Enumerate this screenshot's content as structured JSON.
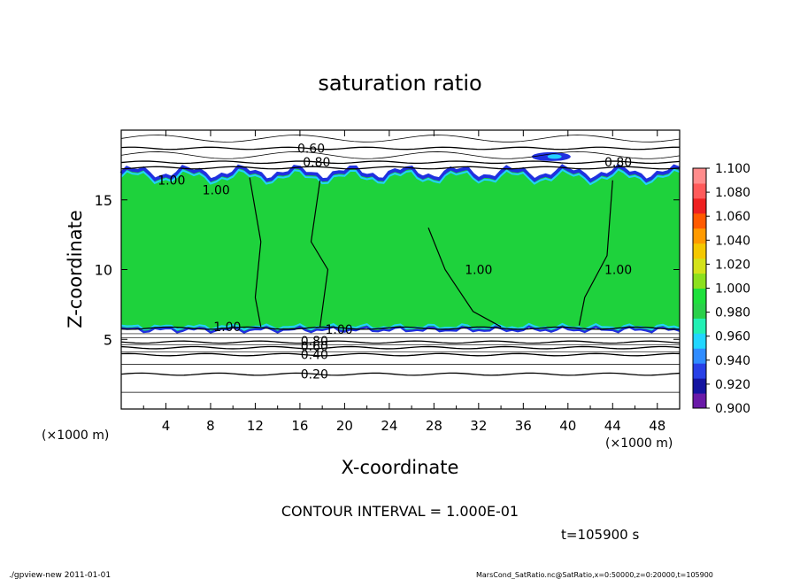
{
  "chart_data": {
    "type": "heatmap",
    "title": "saturation ratio",
    "xlabel": "X-coordinate",
    "ylabel": "Z-coordinate",
    "x_unit": "(×1000 m)",
    "x_unit_bottom": "(×1000 m)",
    "xlim": [
      0,
      50
    ],
    "ylim": [
      0,
      20
    ],
    "x_ticks": [
      "4",
      "8",
      "12",
      "16",
      "20",
      "24",
      "28",
      "32",
      "36",
      "40",
      "44",
      "48"
    ],
    "y_ticks": [
      "5",
      "10",
      "15"
    ],
    "colorbar": {
      "colors": [
        "#6a1aa8",
        "#1414a0",
        "#2840e6",
        "#2f8cff",
        "#22d6ff",
        "#22f0b4",
        "#2ad04a",
        "#1ee03c",
        "#8ce01e",
        "#d4e21a",
        "#f4c800",
        "#ff9a00",
        "#ff5a00",
        "#ee2020",
        "#ff5a5a",
        "#ff8c8c"
      ],
      "labels": [
        "0.900",
        "0.920",
        "0.940",
        "0.960",
        "0.980",
        "1.000",
        "1.020",
        "1.040",
        "1.060",
        "1.080",
        "1.100"
      ]
    },
    "contours": [
      {
        "label": "0.20",
        "z": 2.5
      },
      {
        "label": "0.40",
        "z": 3.9
      },
      {
        "label": "0.60",
        "z": 4.4
      },
      {
        "label": "0.80",
        "z": 4.8
      },
      {
        "label": "1.00",
        "z": 5.8
      },
      {
        "label": "1.00",
        "z": 17.3
      },
      {
        "label": "0.80",
        "z": 17.7
      },
      {
        "label": "0.60",
        "z": 18.7
      }
    ],
    "contour_labels": [
      {
        "text": "0.60",
        "x": 17.0,
        "z": 18.7
      },
      {
        "text": "0.80",
        "x": 17.5,
        "z": 17.7
      },
      {
        "text": "0.80",
        "x": 44.5,
        "z": 17.7
      },
      {
        "text": "1.00",
        "x": 4.5,
        "z": 16.4
      },
      {
        "text": "1.00",
        "x": 8.5,
        "z": 15.7
      },
      {
        "text": "1.00",
        "x": 32.0,
        "z": 10.0
      },
      {
        "text": "1.00",
        "x": 44.5,
        "z": 10.0
      },
      {
        "text": "1.00",
        "x": 9.5,
        "z": 5.9
      },
      {
        "text": "1.00",
        "x": 19.5,
        "z": 5.7
      },
      {
        "text": "0.80",
        "x": 17.3,
        "z": 4.9
      },
      {
        "text": "0.60",
        "x": 17.3,
        "z": 4.5
      },
      {
        "text": "0.40",
        "x": 17.3,
        "z": 3.9
      },
      {
        "text": "0.20",
        "x": 17.3,
        "z": 2.5
      }
    ],
    "annotations": {
      "contour_interval": "CONTOUR INTERVAL = 1.000E-01",
      "time": "t=105900 s"
    }
  },
  "footer": {
    "left": "./gpview-new   2011-01-01",
    "right": "MarsCond_SatRatio.nc@SatRatio,x=0:50000,z=0:20000,t=105900"
  },
  "colors": {
    "field": "#1ed23c",
    "edge_blue": "#2030e0",
    "edge_cyan": "#22d0ff"
  }
}
